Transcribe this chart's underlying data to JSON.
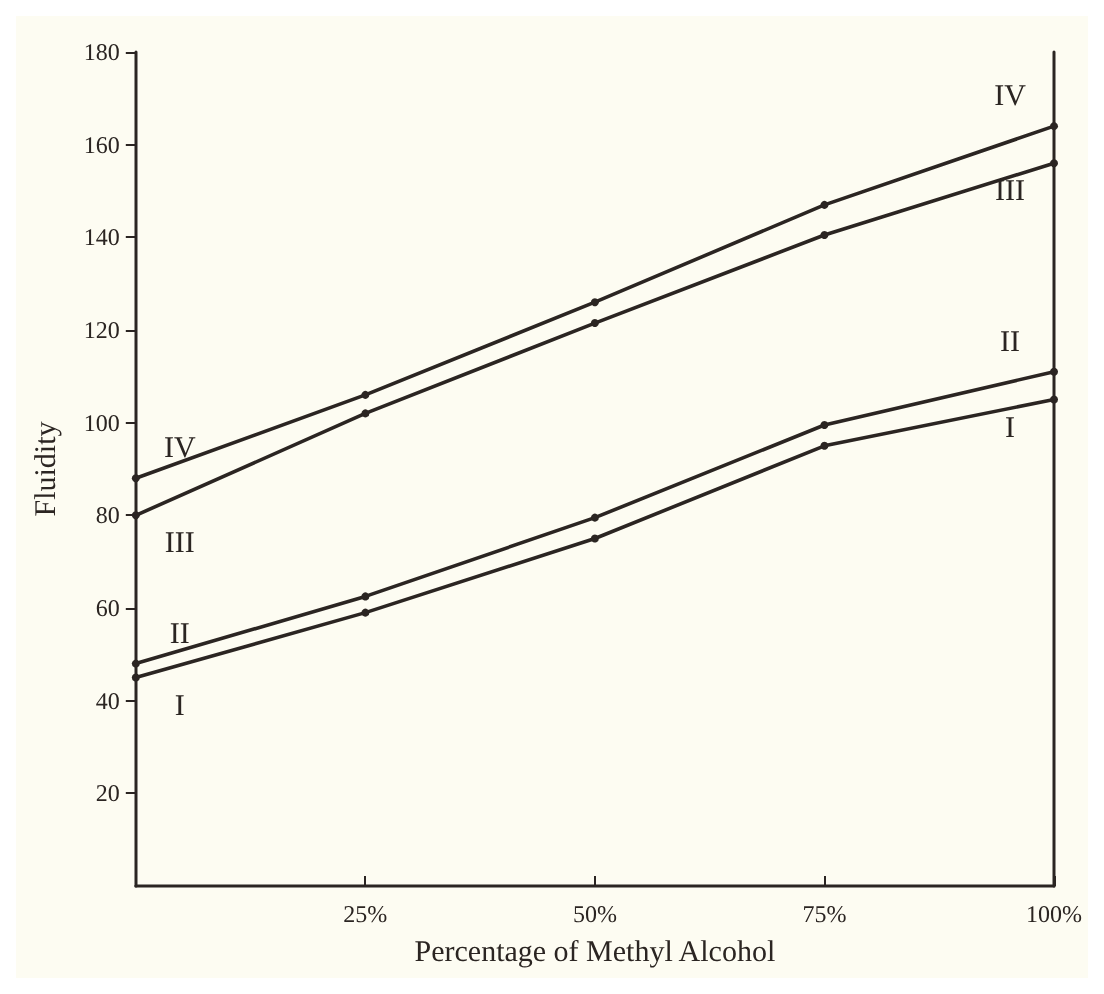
{
  "chart_data": {
    "type": "line",
    "xlabel": "Percentage of Methyl Alcohol",
    "ylabel": "Fluidity",
    "x": [
      0,
      25,
      50,
      75,
      100
    ],
    "series": [
      {
        "name": "I",
        "color": "#2b2522",
        "values": [
          45,
          59,
          75,
          95,
          105
        ]
      },
      {
        "name": "II",
        "color": "#2b2522",
        "values": [
          48,
          62.5,
          79.5,
          99.5,
          111
        ]
      },
      {
        "name": "III",
        "color": "#2b2522",
        "values": [
          80,
          102,
          121.5,
          140.5,
          156
        ]
      },
      {
        "name": "IV",
        "color": "#2b2522",
        "values": [
          88,
          106,
          126,
          147,
          164
        ]
      }
    ],
    "xlim": [
      0,
      100
    ],
    "xticks": [
      {
        "value": 25,
        "label": "25%"
      },
      {
        "value": 50,
        "label": "50%"
      },
      {
        "value": 75,
        "label": "75%"
      },
      {
        "value": 100,
        "label": "100%"
      }
    ],
    "ylim": [
      0,
      180
    ],
    "yticks": [
      20,
      40,
      60,
      80,
      100,
      120,
      140,
      160,
      180
    ],
    "grid": false,
    "legend": false,
    "marker": "circle",
    "line_style": "solid"
  }
}
